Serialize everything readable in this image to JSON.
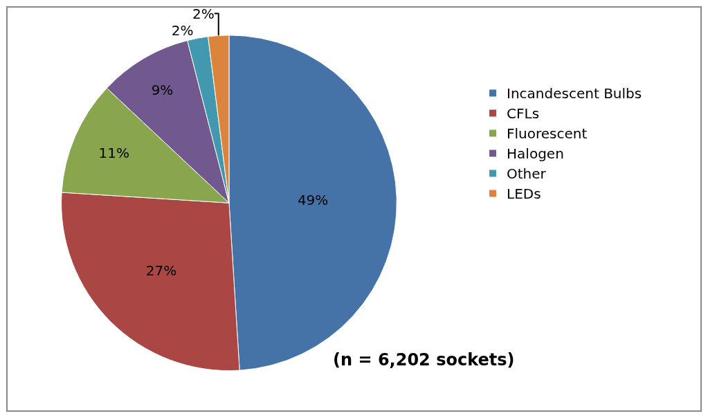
{
  "chart_data": {
    "type": "pie",
    "categories": [
      "Incandescent Bulbs",
      "CFLs",
      "Fluorescent",
      "Halogen",
      "Other",
      "LEDs"
    ],
    "values": [
      49,
      27,
      11,
      9,
      2,
      2
    ],
    "colors": [
      "#4572a7",
      "#aa4643",
      "#89a54e",
      "#71588f",
      "#4198af",
      "#db843d"
    ],
    "value_labels": [
      "49%",
      "27%",
      "11%",
      "9%",
      "2%",
      "2%"
    ],
    "legend": "right",
    "annotations": [
      "(n = 6,202 sockets)"
    ]
  }
}
